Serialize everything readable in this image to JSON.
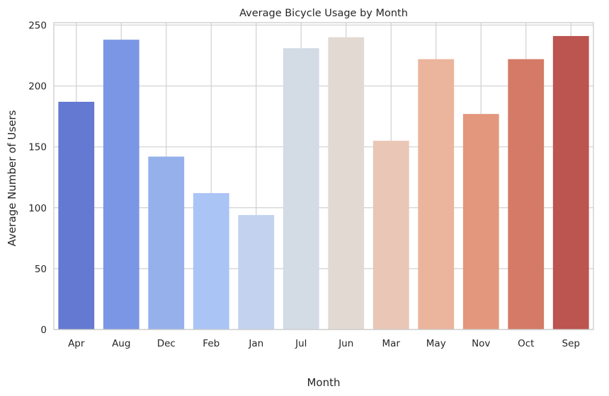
{
  "chart_data": {
    "type": "bar",
    "title": "Average Bicycle Usage by Month",
    "xlabel": "Month",
    "ylabel": "Average Number of Users",
    "categories": [
      "Apr",
      "Aug",
      "Dec",
      "Feb",
      "Jan",
      "Jul",
      "Jun",
      "Mar",
      "May",
      "Nov",
      "Oct",
      "Sep"
    ],
    "values": [
      187,
      238,
      142,
      112,
      94,
      231,
      240,
      155,
      222,
      177,
      222,
      241
    ],
    "colors": [
      "#6479d1",
      "#7b96e5",
      "#95b0eb",
      "#aac4f5",
      "#c3d2ef",
      "#d3dbe5",
      "#e3d9d3",
      "#e9c6b5",
      "#ebb49c",
      "#e3977d",
      "#d47a66",
      "#bc5450"
    ],
    "ylim": [
      0,
      252
    ],
    "yticks": [
      0,
      50,
      100,
      150,
      200,
      250
    ],
    "grid": true,
    "legend": "none"
  }
}
